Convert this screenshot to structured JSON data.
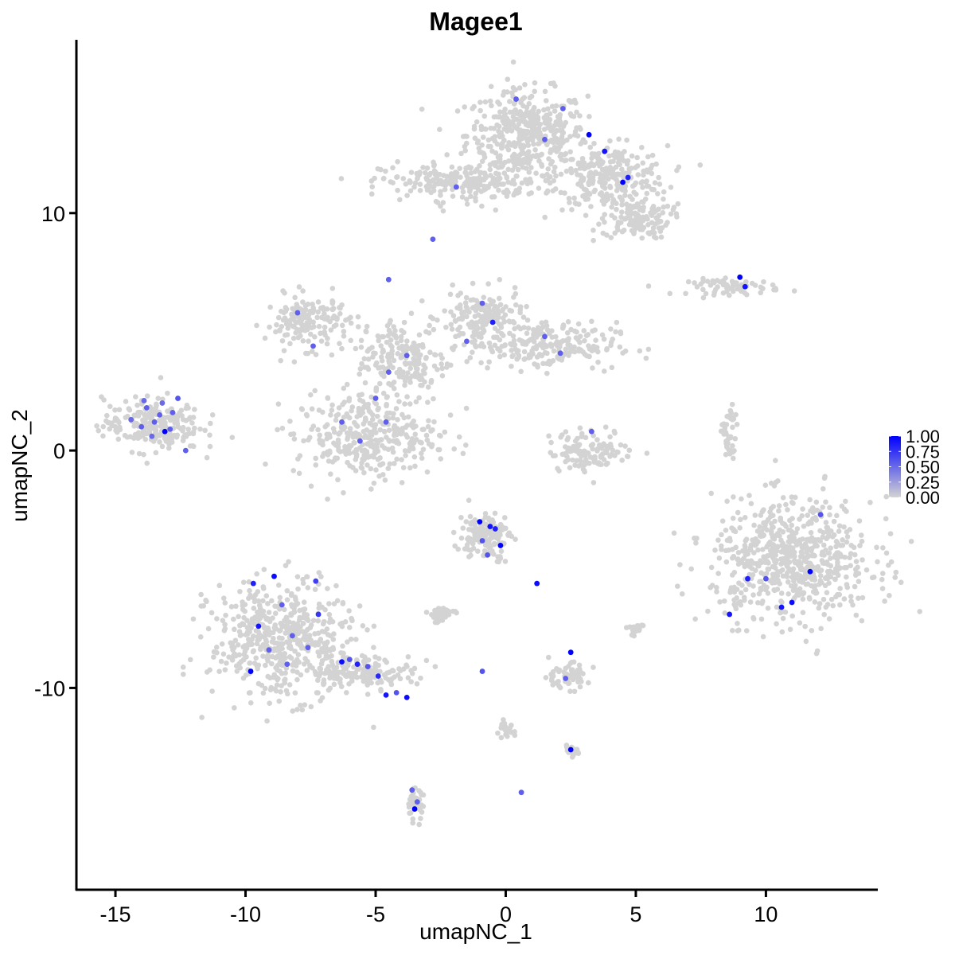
{
  "chart_data": {
    "type": "scatter",
    "title": "Magee1",
    "xlabel": "umapNC_1",
    "ylabel": "umapNC_2",
    "xlim": [
      -16.5,
      14.3
    ],
    "ylim": [
      -18.5,
      17.3
    ],
    "x_ticks": [
      -15,
      -10,
      -5,
      0,
      5,
      10
    ],
    "x_tick_labels": [
      "-15",
      "-10",
      "-5",
      "0",
      "5",
      "10"
    ],
    "y_ticks": [
      -10,
      0,
      10
    ],
    "y_tick_labels": [
      "-10",
      "0",
      "10"
    ],
    "grid": false,
    "legend_position": "right",
    "color_scale": {
      "low_color": "#d3d3d3",
      "high_color": "#0000ff",
      "min": 0.0,
      "max": 1.0,
      "breaks": [
        1.0,
        0.75,
        0.5,
        0.25,
        0.0
      ],
      "break_labels": [
        "1.00",
        "0.75",
        "0.50",
        "0.25",
        "0.00"
      ]
    },
    "background_clusters": [
      {
        "cx": 0.8,
        "cy": 13.3,
        "rx": 2.1,
        "ry": 1.7,
        "n": 420
      },
      {
        "cx": 4.0,
        "cy": 11.5,
        "rx": 2.0,
        "ry": 1.2,
        "n": 260
      },
      {
        "cx": 5.0,
        "cy": 9.8,
        "rx": 1.2,
        "ry": 0.8,
        "n": 130
      },
      {
        "cx": -1.7,
        "cy": 11.3,
        "rx": 2.8,
        "ry": 0.7,
        "n": 230
      },
      {
        "cx": 8.8,
        "cy": 6.9,
        "rx": 1.6,
        "ry": 0.3,
        "n": 70
      },
      {
        "cx": -7.6,
        "cy": 5.4,
        "rx": 1.5,
        "ry": 1.0,
        "n": 160
      },
      {
        "cx": -0.9,
        "cy": 5.6,
        "rx": 1.4,
        "ry": 1.0,
        "n": 160
      },
      {
        "cx": 1.4,
        "cy": 4.4,
        "rx": 2.6,
        "ry": 0.9,
        "n": 220
      },
      {
        "cx": -4.0,
        "cy": 3.8,
        "rx": 1.6,
        "ry": 1.7,
        "n": 200
      },
      {
        "cx": -5.4,
        "cy": 0.6,
        "rx": 2.5,
        "ry": 1.6,
        "n": 330
      },
      {
        "cx": -13.6,
        "cy": 1.1,
        "rx": 1.7,
        "ry": 1.0,
        "n": 230
      },
      {
        "cx": 3.3,
        "cy": 0.0,
        "rx": 1.5,
        "ry": 0.8,
        "n": 120
      },
      {
        "cx": 11.0,
        "cy": -4.6,
        "rx": 2.8,
        "ry": 2.3,
        "n": 650
      },
      {
        "cx": 8.6,
        "cy": 0.5,
        "rx": 0.25,
        "ry": 1.3,
        "n": 40
      },
      {
        "cx": -8.6,
        "cy": -8.0,
        "rx": 2.5,
        "ry": 2.2,
        "n": 520
      },
      {
        "cx": -5.5,
        "cy": -9.3,
        "rx": 1.8,
        "ry": 0.6,
        "n": 150
      },
      {
        "cx": -0.8,
        "cy": -3.6,
        "rx": 0.9,
        "ry": 0.9,
        "n": 130
      },
      {
        "cx": -2.5,
        "cy": -6.9,
        "rx": 0.5,
        "ry": 0.3,
        "n": 40
      },
      {
        "cx": 2.3,
        "cy": -9.5,
        "rx": 0.8,
        "ry": 0.5,
        "n": 60
      },
      {
        "cx": 0.0,
        "cy": -11.8,
        "rx": 0.3,
        "ry": 0.3,
        "n": 30
      },
      {
        "cx": 2.5,
        "cy": -12.7,
        "rx": 0.3,
        "ry": 0.2,
        "n": 20
      },
      {
        "cx": -3.5,
        "cy": -14.9,
        "rx": 0.3,
        "ry": 0.6,
        "n": 40
      },
      {
        "cx": 5.0,
        "cy": -7.5,
        "rx": 0.3,
        "ry": 0.3,
        "n": 20
      }
    ],
    "points": [
      {
        "x": -13.8,
        "y": 1.8,
        "v": 0.55
      },
      {
        "x": -13.5,
        "y": 1.2,
        "v": 0.55
      },
      {
        "x": -13.2,
        "y": 2.0,
        "v": 0.5
      },
      {
        "x": -14.0,
        "y": 1.0,
        "v": 0.55
      },
      {
        "x": -13.1,
        "y": 0.8,
        "v": 1.0
      },
      {
        "x": -12.8,
        "y": 1.6,
        "v": 0.55
      },
      {
        "x": -13.6,
        "y": 0.6,
        "v": 0.5
      },
      {
        "x": -12.6,
        "y": 2.2,
        "v": 0.6
      },
      {
        "x": -14.4,
        "y": 1.3,
        "v": 0.5
      },
      {
        "x": -13.3,
        "y": 1.5,
        "v": 0.55
      },
      {
        "x": -12.9,
        "y": 0.9,
        "v": 0.55
      },
      {
        "x": -13.9,
        "y": 2.1,
        "v": 0.5
      },
      {
        "x": -9.7,
        "y": -5.6,
        "v": 0.85
      },
      {
        "x": -9.5,
        "y": -7.4,
        "v": 0.9
      },
      {
        "x": -9.8,
        "y": -9.3,
        "v": 1.0
      },
      {
        "x": -8.6,
        "y": -6.5,
        "v": 0.55
      },
      {
        "x": -8.2,
        "y": -7.8,
        "v": 0.55
      },
      {
        "x": -7.2,
        "y": -6.9,
        "v": 0.75
      },
      {
        "x": -7.3,
        "y": -5.5,
        "v": 0.7
      },
      {
        "x": -8.4,
        "y": -9.0,
        "v": 0.55
      },
      {
        "x": -9.1,
        "y": -8.4,
        "v": 0.55
      },
      {
        "x": -6.3,
        "y": -8.9,
        "v": 0.95
      },
      {
        "x": -6.0,
        "y": -8.8,
        "v": 0.6
      },
      {
        "x": -5.7,
        "y": -9.0,
        "v": 0.85
      },
      {
        "x": -5.3,
        "y": -9.1,
        "v": 0.6
      },
      {
        "x": -4.9,
        "y": -9.5,
        "v": 0.8
      },
      {
        "x": -4.6,
        "y": -10.3,
        "v": 0.9
      },
      {
        "x": -4.2,
        "y": -10.2,
        "v": 0.6
      },
      {
        "x": -3.8,
        "y": -10.4,
        "v": 0.95
      },
      {
        "x": -7.6,
        "y": -8.3,
        "v": 0.55
      },
      {
        "x": -8.9,
        "y": -5.3,
        "v": 0.95
      },
      {
        "x": -3.5,
        "y": -15.1,
        "v": 1.0
      },
      {
        "x": -3.6,
        "y": -14.3,
        "v": 0.55
      },
      {
        "x": -3.4,
        "y": -14.8,
        "v": 0.55
      },
      {
        "x": -1.0,
        "y": -3.0,
        "v": 1.0
      },
      {
        "x": -0.6,
        "y": -3.2,
        "v": 0.9
      },
      {
        "x": -0.2,
        "y": -4.0,
        "v": 1.0
      },
      {
        "x": -0.9,
        "y": -3.8,
        "v": 0.6
      },
      {
        "x": -0.4,
        "y": -3.3,
        "v": 0.85
      },
      {
        "x": 1.2,
        "y": -5.6,
        "v": 0.95
      },
      {
        "x": -0.7,
        "y": -4.4,
        "v": 0.6
      },
      {
        "x": 2.5,
        "y": -8.5,
        "v": 1.0
      },
      {
        "x": 2.5,
        "y": -12.6,
        "v": 1.0
      },
      {
        "x": 2.3,
        "y": -9.6,
        "v": 0.55
      },
      {
        "x": 0.6,
        "y": -14.4,
        "v": 0.55
      },
      {
        "x": -0.9,
        "y": -9.3,
        "v": 0.6
      },
      {
        "x": 3.2,
        "y": 13.3,
        "v": 1.0
      },
      {
        "x": 3.8,
        "y": 12.6,
        "v": 0.9
      },
      {
        "x": 4.5,
        "y": 11.3,
        "v": 1.0
      },
      {
        "x": 4.7,
        "y": 11.5,
        "v": 0.85
      },
      {
        "x": 2.2,
        "y": 14.4,
        "v": 0.55
      },
      {
        "x": 1.5,
        "y": 13.1,
        "v": 0.55
      },
      {
        "x": 0.4,
        "y": 14.8,
        "v": 0.55
      },
      {
        "x": 9.0,
        "y": 7.3,
        "v": 1.0
      },
      {
        "x": 9.2,
        "y": 6.9,
        "v": 0.9
      },
      {
        "x": 11.7,
        "y": -5.1,
        "v": 1.0
      },
      {
        "x": 11.0,
        "y": -6.4,
        "v": 0.95
      },
      {
        "x": 9.3,
        "y": -5.4,
        "v": 0.85
      },
      {
        "x": 8.6,
        "y": -6.9,
        "v": 0.9
      },
      {
        "x": 12.1,
        "y": -2.7,
        "v": 0.6
      },
      {
        "x": 10.6,
        "y": -6.6,
        "v": 0.9
      },
      {
        "x": 10.0,
        "y": -5.4,
        "v": 0.6
      },
      {
        "x": -5.0,
        "y": 2.2,
        "v": 0.55
      },
      {
        "x": -4.6,
        "y": 1.2,
        "v": 0.55
      },
      {
        "x": -6.3,
        "y": 1.2,
        "v": 0.55
      },
      {
        "x": -5.6,
        "y": 0.4,
        "v": 0.55
      },
      {
        "x": -4.5,
        "y": 3.3,
        "v": 0.55
      },
      {
        "x": -3.8,
        "y": 4.0,
        "v": 0.55
      },
      {
        "x": -0.5,
        "y": 5.4,
        "v": 0.85
      },
      {
        "x": -0.9,
        "y": 6.2,
        "v": 0.55
      },
      {
        "x": 1.5,
        "y": 4.8,
        "v": 0.55
      },
      {
        "x": 2.1,
        "y": 4.1,
        "v": 0.55
      },
      {
        "x": -1.5,
        "y": 4.6,
        "v": 0.55
      },
      {
        "x": -7.4,
        "y": 4.4,
        "v": 0.55
      },
      {
        "x": -8.0,
        "y": 5.8,
        "v": 0.55
      },
      {
        "x": -4.5,
        "y": 7.2,
        "v": 0.55
      },
      {
        "x": -2.8,
        "y": 8.9,
        "v": 0.55
      },
      {
        "x": -1.9,
        "y": 11.1,
        "v": 0.55
      },
      {
        "x": -12.3,
        "y": 0.0,
        "v": 0.55
      },
      {
        "x": 3.3,
        "y": 0.8,
        "v": 0.55
      }
    ]
  }
}
